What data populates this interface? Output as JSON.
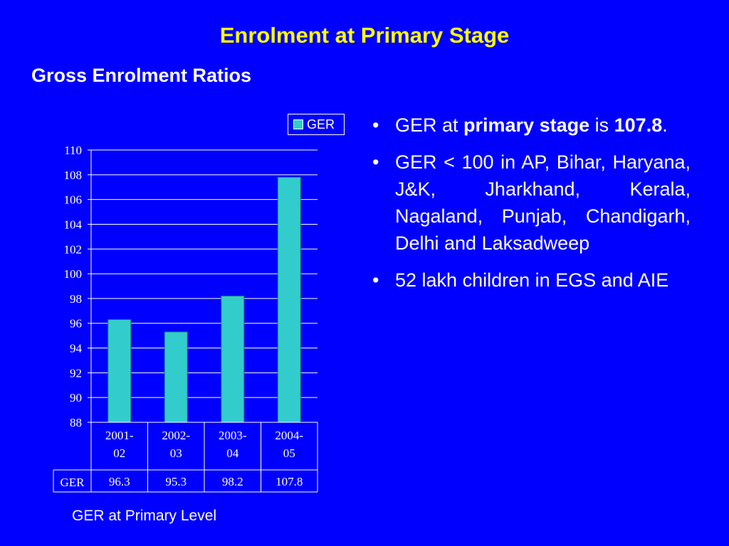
{
  "slide": {
    "title": "Enrolment at Primary Stage",
    "subtitle": "Gross Enrolment Ratios"
  },
  "bullets": [
    {
      "pre": "GER at ",
      "bold": "primary stage",
      "post": " is "
    },
    {
      "text": "GER < 100  in AP, Bihar, Haryana, J&K,  Jharkhand, Kerala, Nagaland, Punjab, Chandigarh,       Delhi and Laksadweep"
    },
    {
      "text": "52 lakh children in EGS and AIE"
    }
  ],
  "bullet_value": "107.8",
  "bullet_end": ".",
  "chart_data": {
    "type": "bar",
    "categories": [
      "2001-02",
      "2002-03",
      "2003-04",
      "2004-05"
    ],
    "category_lines": [
      [
        "2001-",
        "02"
      ],
      [
        "2002-",
        "03"
      ],
      [
        "2003-",
        "04"
      ],
      [
        "2004-",
        "05"
      ]
    ],
    "series": [
      {
        "name": "GER",
        "values": [
          96.3,
          95.3,
          98.2,
          107.8
        ]
      }
    ],
    "table_values": [
      "96.3",
      "95.3",
      "98.2",
      "107.8"
    ],
    "table_row_label": "GER",
    "legend_label": "GER",
    "ylim": [
      88,
      110
    ],
    "yticks": [
      88,
      90,
      92,
      94,
      96,
      98,
      100,
      102,
      104,
      106,
      108,
      110
    ],
    "legend_position": "top-right",
    "grid": true,
    "bar_color": "#33cccc",
    "caption": "GER at Primary  Level"
  }
}
